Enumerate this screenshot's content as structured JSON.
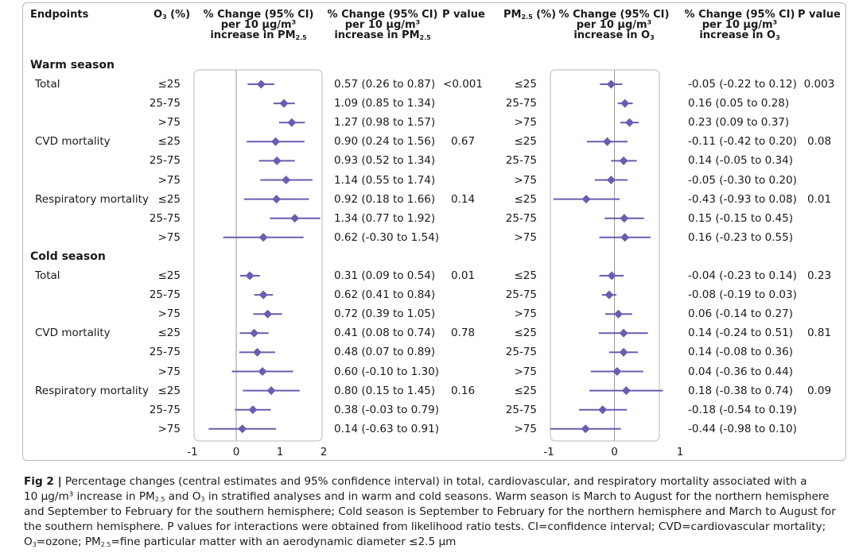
{
  "headers": {
    "endpoints": "Endpoints",
    "o3_pct": "O3 (%)",
    "pm_pct": "PM2.5 (%)",
    "change_pm_line1": "% Change (95% CI)",
    "change_pm_line2": "per 10 µg/m3",
    "change_pm_line3": "increase in PM2.5",
    "pvalue": "P value",
    "change_o3_line1": "% Change (95% CI)",
    "change_o3_line2": "per 10 µg/m3",
    "change_o3_line3": "increase in O3"
  },
  "sections": [
    {
      "title": "Warm season",
      "endpoints": [
        {
          "name": "Total",
          "rows": [
            {
              "o3": "≤25",
              "pm_ci": "0.57 (0.26 to 0.87)",
              "pm": "≤25",
              "o3_ci": "-0.05 (-0.22 to 0.12)"
            },
            {
              "o3": "25-75",
              "pm_ci": "1.09 (0.85 to 1.34)",
              "pm": "25-75",
              "o3_ci": "0.16 (0.05 to 0.28)"
            },
            {
              "o3": ">75",
              "pm_ci": "1.27 (0.98 to 1.57)",
              "pm": ">75",
              "o3_ci": "0.23 (0.09 to 0.37)"
            }
          ],
          "p_pm": "<0.001",
          "p_o3": "0.003"
        },
        {
          "name": "CVD mortality",
          "rows": [
            {
              "o3": "≤25",
              "pm_ci": "0.90 (0.24 to 1.56)",
              "pm": "≤25",
              "o3_ci": "-0.11 (-0.42 to 0.20)"
            },
            {
              "o3": "25-75",
              "pm_ci": "0.93 (0.52 to 1.34)",
              "pm": "25-75",
              "o3_ci": "0.14 (-0.05 to 0.34)"
            },
            {
              "o3": ">75",
              "pm_ci": "1.14 (0.55 to 1.74)",
              "pm": ">75",
              "o3_ci": "-0.05 (-0.30 to 0.20)"
            }
          ],
          "p_pm": "0.67",
          "p_o3": "0.08"
        },
        {
          "name": "Respiratory mortality",
          "rows": [
            {
              "o3": "≤25",
              "pm_ci": "0.92 (0.18 to 1.66)",
              "pm": "≤25",
              "o3_ci": "-0.43 (-0.93 to 0.08)"
            },
            {
              "o3": "25-75",
              "pm_ci": "1.34 (0.77 to 1.92)",
              "pm": "25-75",
              "o3_ci": "0.15 (-0.15 to 0.45)"
            },
            {
              "o3": ">75",
              "pm_ci": "0.62 (-0.30 to 1.54)",
              "pm": ">75",
              "o3_ci": "0.16 (-0.23 to 0.55)"
            }
          ],
          "p_pm": "0.14",
          "p_o3": "0.01"
        }
      ]
    },
    {
      "title": "Cold season",
      "endpoints": [
        {
          "name": "Total",
          "rows": [
            {
              "o3": "≤25",
              "pm_ci": "0.31 (0.09 to 0.54)",
              "pm": "≤25",
              "o3_ci": "-0.04 (-0.23 to 0.14)"
            },
            {
              "o3": "25-75",
              "pm_ci": "0.62 (0.41 to 0.84)",
              "pm": "25-75",
              "o3_ci": "-0.08 (-0.19 to 0.03)"
            },
            {
              "o3": ">75",
              "pm_ci": "0.72 (0.39 to 1.05)",
              "pm": ">75",
              "o3_ci": "0.06 (-0.14 to 0.27)"
            }
          ],
          "p_pm": "0.01",
          "p_o3": "0.23"
        },
        {
          "name": "CVD mortality",
          "rows": [
            {
              "o3": "≤25",
              "pm_ci": "0.41 (0.08 to 0.74)",
              "pm": "≤25",
              "o3_ci": "0.14 (-0.24 to 0.51)"
            },
            {
              "o3": "25-75",
              "pm_ci": "0.48 (0.07 to 0.89)",
              "pm": "25-75",
              "o3_ci": "0.14 (-0.08 to 0.36)"
            },
            {
              "o3": ">75",
              "pm_ci": "0.60 (-0.10 to 1.30)",
              "pm": ">75",
              "o3_ci": "0.04 (-0.36 to 0.44)"
            }
          ],
          "p_pm": "0.78",
          "p_o3": "0.81"
        },
        {
          "name": "Respiratory mortality",
          "rows": [
            {
              "o3": "≤25",
              "pm_ci": "0.80 (0.15 to 1.45)",
              "pm": "≤25",
              "o3_ci": "0.18 (-0.38 to 0.74)"
            },
            {
              "o3": "25-75",
              "pm_ci": "0.38 (-0.03 to 0.79)",
              "pm": "25-75",
              "o3_ci": "-0.18 (-0.54 to 0.19)"
            },
            {
              "o3": ">75",
              "pm_ci": "0.14 (-0.63 to 0.91)",
              "pm": ">75",
              "o3_ci": "-0.44 (-0.98 to 0.10)"
            }
          ],
          "p_pm": "0.16",
          "p_o3": "0.09"
        }
      ]
    }
  ],
  "caption": {
    "l1": "Fig 2 | Percentage changes (central estimates and 95% confidence interval) in total, cardiovascular, and respiratory mortality associated with a",
    "l2": "10 µg/m³ increase in PM2.5 and O3 in stratified analyses and in warm and cold seasons. Warm season is March to August for the northern hemisphere",
    "l3": "and September to February for the southern hemisphere; Cold season is September to February for the northern hemisphere and March to August for",
    "l4": "the southern hemisphere. P values for interactions were obtained from likelihood ratio tests. CI=confidence interval; CVD=cardiovascular mortality;",
    "l5": "O3=ozone; PM2.5=fine particular matter with an aerodynamic diameter ≤2.5 µm"
  },
  "colors": {
    "marker": "#6a5cb0",
    "ci_line": "#6a5cb0",
    "frame": "#b9b9b9",
    "zero_line": "#9a9a9a"
  },
  "chart_data": [
    {
      "type": "scatter",
      "subtype": "forest-plot",
      "title": "",
      "xlabel": "",
      "ylabel": "",
      "xlim": [
        -1,
        2
      ],
      "xticks": [
        -1,
        0,
        1,
        2
      ],
      "reference_line": 0,
      "categories": [
        "Warm Total ≤25",
        "Warm Total 25-75",
        "Warm Total >75",
        "Warm CVD ≤25",
        "Warm CVD 25-75",
        "Warm CVD >75",
        "Warm Resp ≤25",
        "Warm Resp 25-75",
        "Warm Resp >75",
        "Cold Total ≤25",
        "Cold Total 25-75",
        "Cold Total >75",
        "Cold CVD ≤25",
        "Cold CVD 25-75",
        "Cold CVD >75",
        "Cold Resp ≤25",
        "Cold Resp 25-75",
        "Cold Resp >75"
      ],
      "series": [
        {
          "values": [
            0.57,
            1.09,
            1.27,
            0.9,
            0.93,
            1.14,
            0.92,
            1.34,
            0.62,
            0.31,
            0.62,
            0.72,
            0.41,
            0.48,
            0.6,
            0.8,
            0.38,
            0.14
          ],
          "lower": [
            0.26,
            0.85,
            0.98,
            0.24,
            0.52,
            0.55,
            0.18,
            0.77,
            -0.3,
            0.09,
            0.41,
            0.39,
            0.08,
            0.07,
            -0.1,
            0.15,
            -0.03,
            -0.63
          ],
          "upper": [
            0.87,
            1.34,
            1.57,
            1.56,
            1.34,
            1.74,
            1.66,
            1.92,
            1.54,
            0.54,
            0.84,
            1.05,
            0.74,
            0.89,
            1.3,
            1.45,
            0.79,
            0.91
          ]
        }
      ]
    },
    {
      "type": "scatter",
      "subtype": "forest-plot",
      "title": "",
      "xlabel": "",
      "ylabel": "",
      "xlim": [
        -1,
        1
      ],
      "xticks": [
        -1,
        0,
        1
      ],
      "reference_line": 0,
      "categories": [
        "Warm Total ≤25",
        "Warm Total 25-75",
        "Warm Total >75",
        "Warm CVD ≤25",
        "Warm CVD 25-75",
        "Warm CVD >75",
        "Warm Resp ≤25",
        "Warm Resp 25-75",
        "Warm Resp >75",
        "Cold Total ≤25",
        "Cold Total 25-75",
        "Cold Total >75",
        "Cold CVD ≤25",
        "Cold CVD 25-75",
        "Cold CVD >75",
        "Cold Resp ≤25",
        "Cold Resp 25-75",
        "Cold Resp >75"
      ],
      "series": [
        {
          "values": [
            -0.05,
            0.16,
            0.23,
            -0.11,
            0.14,
            -0.05,
            -0.43,
            0.15,
            0.16,
            -0.04,
            -0.08,
            0.06,
            0.14,
            0.14,
            0.04,
            0.18,
            -0.18,
            -0.44
          ],
          "lower": [
            -0.22,
            0.05,
            0.09,
            -0.42,
            -0.05,
            -0.3,
            -0.93,
            -0.15,
            -0.23,
            -0.23,
            -0.19,
            -0.14,
            -0.24,
            -0.08,
            -0.36,
            -0.38,
            -0.54,
            -0.98
          ],
          "upper": [
            0.12,
            0.28,
            0.37,
            0.2,
            0.34,
            0.2,
            0.08,
            0.45,
            0.55,
            0.14,
            0.03,
            0.27,
            0.51,
            0.36,
            0.44,
            0.74,
            0.19,
            0.1
          ]
        }
      ]
    }
  ]
}
